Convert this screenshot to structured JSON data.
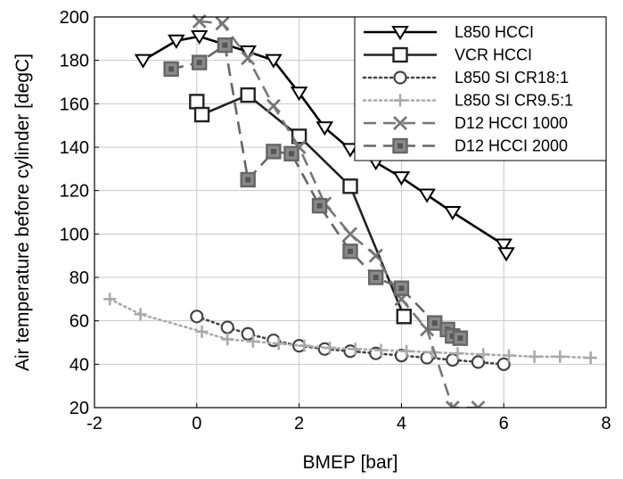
{
  "chart_data": {
    "type": "line",
    "title": "",
    "xlabel": "BMEP [bar]",
    "ylabel": "Air temperature before cylinder [degC]",
    "xlim": [
      -2,
      8
    ],
    "ylim": [
      20,
      200
    ],
    "xticks": [
      -2,
      0,
      2,
      4,
      6,
      8
    ],
    "yticks": [
      20,
      40,
      60,
      80,
      100,
      120,
      140,
      160,
      180,
      200
    ],
    "grid": true,
    "legend_position": "top-right",
    "series": [
      {
        "name": "L850 HCCI",
        "color": "#000000",
        "line": "solid",
        "marker": "triangle-down",
        "x": [
          -1.05,
          -0.4,
          0.05,
          1.0,
          1.5,
          2.0,
          2.5,
          3.0,
          3.5,
          4.0,
          4.5,
          5.0,
          6.0,
          6.05
        ],
        "y": [
          180,
          189,
          191,
          184,
          180,
          165,
          149,
          139,
          133,
          126,
          118,
          110,
          95,
          91
        ]
      },
      {
        "name": "VCR HCCI",
        "color": "#222222",
        "line": "solid",
        "marker": "square",
        "x": [
          0.0,
          0.1,
          1.0,
          2.0,
          3.0,
          4.05
        ],
        "y": [
          161,
          155,
          164,
          145,
          122,
          62
        ]
      },
      {
        "name": "L850 SI CR18:1",
        "color": "#444444",
        "line": "dotted",
        "marker": "circle",
        "x": [
          0.0,
          0.6,
          1.0,
          1.5,
          2.0,
          2.5,
          3.0,
          3.5,
          4.0,
          4.5,
          5.0,
          5.5,
          6.0
        ],
        "y": [
          62,
          57,
          54,
          51,
          48.5,
          47,
          46,
          45,
          44,
          43,
          42,
          41,
          40
        ]
      },
      {
        "name": "L850 SI CR9.5:1",
        "color": "#aaaaaa",
        "line": "dotted",
        "marker": "plus",
        "x": [
          -1.7,
          -1.1,
          0.1,
          0.6,
          1.1,
          1.6,
          2.1,
          2.6,
          3.1,
          3.6,
          4.1,
          4.6,
          5.1,
          5.6,
          6.1,
          6.6,
          7.1,
          7.7
        ],
        "y": [
          70,
          63,
          55,
          51.5,
          50.5,
          49.5,
          48.5,
          47.5,
          47,
          46.5,
          46,
          45.5,
          45,
          44.5,
          44,
          43.5,
          43.5,
          43
        ]
      },
      {
        "name": "D12 HCCI 1000",
        "color": "#777777",
        "line": "dashed",
        "marker": "x",
        "x": [
          0.05,
          0.5,
          1.0,
          1.5,
          2.0,
          2.5,
          3.0,
          3.5,
          4.0,
          4.5,
          5.0,
          5.5
        ],
        "y": [
          198,
          197,
          181,
          159,
          140,
          114,
          100,
          90,
          70,
          56,
          20,
          20
        ]
      },
      {
        "name": "D12 HCCI 2000",
        "color": "#666666",
        "line": "dashed",
        "marker": "square-filled",
        "x": [
          -0.5,
          0.05,
          0.55,
          1.0,
          1.5,
          1.85,
          2.4,
          3.0,
          3.5,
          4.0,
          4.65,
          4.9,
          5.0,
          5.15
        ],
        "y": [
          176,
          179,
          187,
          125,
          138,
          137,
          113,
          92,
          80,
          75,
          59,
          56,
          53,
          52
        ]
      }
    ]
  }
}
